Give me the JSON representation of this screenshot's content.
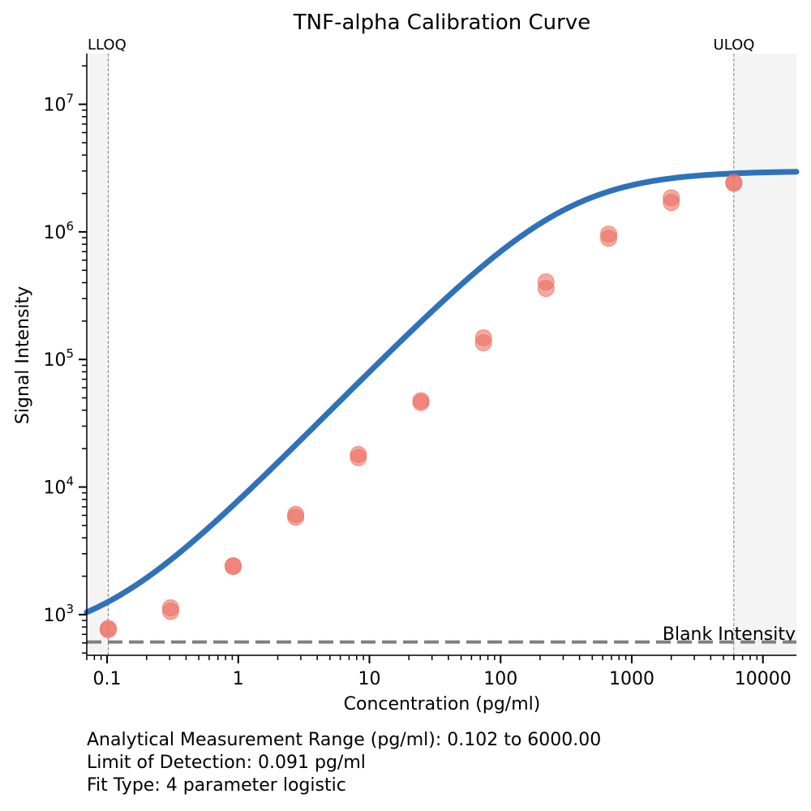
{
  "chart_data": {
    "type": "scatter",
    "title": "TNF-alpha Calibration Curve",
    "xlabel": "Concentration (pg/ml)",
    "ylabel": "Signal Intensity",
    "xscale": "log",
    "yscale": "log",
    "xlim": [
      0.07,
      18000
    ],
    "ylim": [
      480,
      25000000
    ],
    "x_ticks": [
      {
        "value": 0.1,
        "label": "0.1"
      },
      {
        "value": 1,
        "label": "1"
      },
      {
        "value": 10,
        "label": "10"
      },
      {
        "value": 100,
        "label": "100"
      },
      {
        "value": 1000,
        "label": "1000"
      },
      {
        "value": 10000,
        "label": "10000"
      }
    ],
    "y_ticks": [
      {
        "value": 1000,
        "base": "10",
        "exp": "3"
      },
      {
        "value": 10000,
        "base": "10",
        "exp": "4"
      },
      {
        "value": 100000,
        "base": "10",
        "exp": "5"
      },
      {
        "value": 1000000,
        "base": "10",
        "exp": "6"
      },
      {
        "value": 10000000,
        "base": "10",
        "exp": "7"
      }
    ],
    "points": [
      {
        "x": 0.102,
        "y": 780
      },
      {
        "x": 0.102,
        "y": 760
      },
      {
        "x": 0.305,
        "y": 1130
      },
      {
        "x": 0.305,
        "y": 1060
      },
      {
        "x": 0.914,
        "y": 2420
      },
      {
        "x": 0.914,
        "y": 2380
      },
      {
        "x": 2.74,
        "y": 6100
      },
      {
        "x": 2.74,
        "y": 5800
      },
      {
        "x": 8.23,
        "y": 18000
      },
      {
        "x": 8.23,
        "y": 17000
      },
      {
        "x": 24.7,
        "y": 47500
      },
      {
        "x": 24.7,
        "y": 46000
      },
      {
        "x": 74.1,
        "y": 148000
      },
      {
        "x": 74.1,
        "y": 135000
      },
      {
        "x": 222,
        "y": 405000
      },
      {
        "x": 222,
        "y": 360000
      },
      {
        "x": 667,
        "y": 960000
      },
      {
        "x": 667,
        "y": 890000
      },
      {
        "x": 2000,
        "y": 1850000
      },
      {
        "x": 2000,
        "y": 1700000
      },
      {
        "x": 6000,
        "y": 2450000
      },
      {
        "x": 6000,
        "y": 2400000
      }
    ],
    "fit": {
      "bottom": 600,
      "top": 3000000,
      "ec50": 310,
      "hill": 1.05
    },
    "lloq": {
      "value": 0.102,
      "label": "LLOQ"
    },
    "uloq": {
      "value": 6000,
      "label": "ULOQ"
    },
    "blank": {
      "value": 610,
      "label": "Blank Intensity"
    },
    "grid": false,
    "colors": {
      "curve": "#2f72b8",
      "points": "#ec7063",
      "blank_line": "#808080",
      "shade": "#f4f4f4",
      "limit_line": "#808080"
    }
  },
  "footnotes": {
    "range": "Analytical Measurement Range (pg/ml): 0.102 to 6000.00",
    "lod": "Limit of Detection: 0.091 pg/ml",
    "fit_type": "Fit Type: 4 parameter logistic"
  }
}
